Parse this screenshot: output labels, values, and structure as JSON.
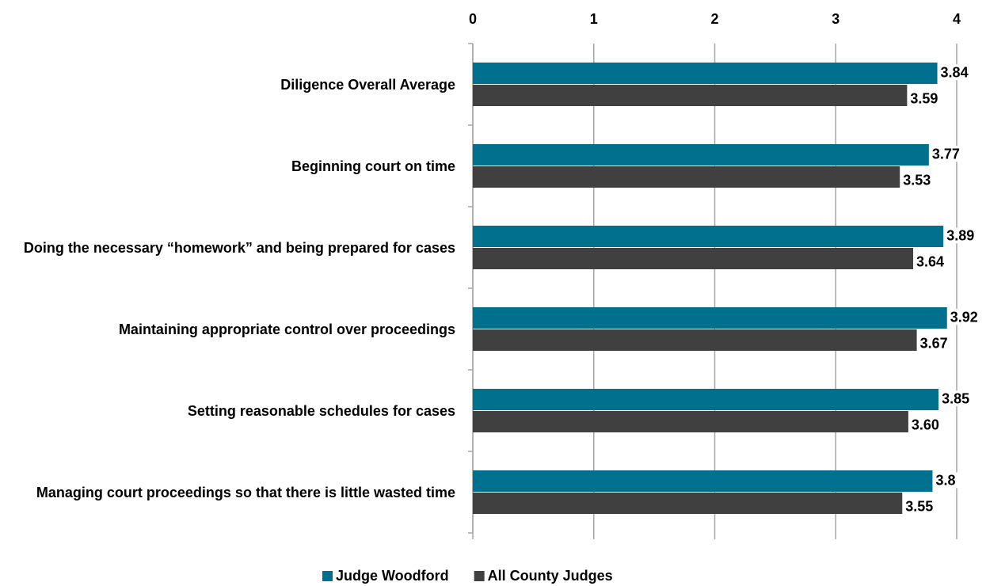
{
  "chart_data": {
    "type": "bar",
    "orientation": "horizontal",
    "categories": [
      "Diligence Overall Average",
      "Beginning court on time",
      "Doing the necessary “homework” and being prepared for cases",
      "Maintaining appropriate control over proceedings",
      "Setting reasonable schedules for cases",
      "Managing court proceedings so that there is little wasted time"
    ],
    "series": [
      {
        "name": "Judge Woodford",
        "color": "#00708f",
        "values": [
          3.84,
          3.77,
          3.89,
          3.92,
          3.85,
          3.8
        ],
        "value_labels": [
          "3.84",
          "3.77",
          "3.89",
          "3.92",
          "3.85",
          "3.8"
        ]
      },
      {
        "name": "All County Judges",
        "color": "#404040",
        "values": [
          3.59,
          3.53,
          3.64,
          3.67,
          3.6,
          3.55
        ],
        "value_labels": [
          "3.59",
          "3.53",
          "3.64",
          "3.67",
          "3.60",
          "3.55"
        ]
      }
    ],
    "xlim": [
      0,
      4
    ],
    "xticks": [
      0,
      1,
      2,
      3,
      4
    ],
    "grid": true,
    "legend": "bottom"
  }
}
